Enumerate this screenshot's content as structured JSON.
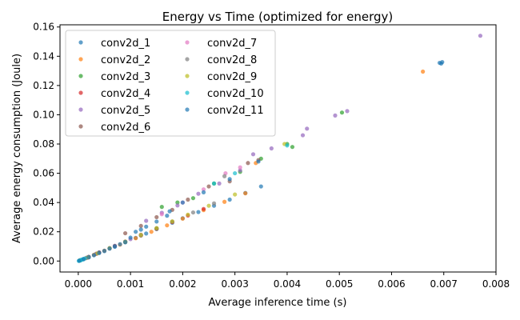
{
  "chart_data": {
    "type": "scatter",
    "title": "Energy vs Time (optimized for energy)",
    "xlabel": "Average inference time (s)",
    "ylabel": "Average energy consumption (Joule)",
    "xlim": [
      -0.00035,
      0.008
    ],
    "ylim": [
      -0.0075,
      0.1615
    ],
    "x_ticks": [
      "0.000",
      "0.001",
      "0.002",
      "0.003",
      "0.004",
      "0.005",
      "0.006",
      "0.007",
      "0.008"
    ],
    "x_tick_values": [
      0,
      0.001,
      0.002,
      0.003,
      0.004,
      0.005,
      0.006,
      0.007,
      0.008
    ],
    "y_ticks": [
      "0.00",
      "0.02",
      "0.04",
      "0.06",
      "0.08",
      "0.10",
      "0.12",
      "0.14",
      "0.16"
    ],
    "y_tick_values": [
      0,
      0.02,
      0.04,
      0.06,
      0.08,
      0.1,
      0.12,
      0.14,
      0.16
    ],
    "grid": false,
    "legend_position": "top-left",
    "legend_columns": 2,
    "series": [
      {
        "name": "conv2d_1",
        "color": "#1f77b4",
        "points": [
          [
            2e-05,
            0.0003
          ],
          [
            0.0001,
            0.0012
          ],
          [
            0.0002,
            0.0025
          ],
          [
            0.0003,
            0.004
          ],
          [
            0.0005,
            0.0068
          ],
          [
            0.0007,
            0.0098
          ],
          [
            0.0009,
            0.0128
          ],
          [
            0.0011,
            0.0158
          ],
          [
            0.0013,
            0.0188
          ],
          [
            0.0015,
            0.0218
          ],
          [
            0.0018,
            0.0262
          ],
          [
            0.002,
            0.0292
          ],
          [
            0.0023,
            0.0335
          ],
          [
            0.0026,
            0.0378
          ],
          [
            0.0029,
            0.042
          ],
          [
            0.0032,
            0.0465
          ],
          [
            0.0035,
            0.051
          ]
        ]
      },
      {
        "name": "conv2d_2",
        "color": "#ff7f0e",
        "points": [
          [
            3e-05,
            0.0004
          ],
          [
            0.00015,
            0.002
          ],
          [
            0.0003,
            0.0043
          ],
          [
            0.0005,
            0.0071
          ],
          [
            0.0008,
            0.0112
          ],
          [
            0.0011,
            0.0156
          ],
          [
            0.0014,
            0.02
          ],
          [
            0.0017,
            0.0244
          ],
          [
            0.002,
            0.029
          ],
          [
            0.0024,
            0.0348
          ],
          [
            0.0028,
            0.0405
          ],
          [
            0.0032,
            0.0463
          ],
          [
            0.0034,
            0.067
          ],
          [
            0.0066,
            0.1295
          ]
        ]
      },
      {
        "name": "conv2d_3",
        "color": "#2ca02c",
        "points": [
          [
            4e-05,
            0.0005
          ],
          [
            0.0002,
            0.0028
          ],
          [
            0.0004,
            0.0058
          ],
          [
            0.0006,
            0.0088
          ],
          [
            0.0009,
            0.013
          ],
          [
            0.0012,
            0.0175
          ],
          [
            0.0015,
            0.0222
          ],
          [
            0.0016,
            0.037
          ],
          [
            0.0019,
            0.04
          ],
          [
            0.0022,
            0.043
          ],
          [
            0.0026,
            0.053
          ],
          [
            0.0031,
            0.061
          ],
          [
            0.0035,
            0.07
          ],
          [
            0.004,
            0.08
          ],
          [
            0.0041,
            0.078
          ],
          [
            0.00505,
            0.1015
          ]
        ]
      },
      {
        "name": "conv2d_4",
        "color": "#d62728",
        "points": [
          [
            3e-05,
            0.0004
          ],
          [
            0.00018,
            0.0024
          ],
          [
            0.00035,
            0.005
          ],
          [
            0.0006,
            0.0086
          ],
          [
            0.0009,
            0.0131
          ],
          [
            0.0012,
            0.0176
          ],
          [
            0.0015,
            0.0221
          ],
          [
            0.0018,
            0.0266
          ],
          [
            0.0021,
            0.0311
          ],
          [
            0.0024,
            0.0356
          ]
        ]
      },
      {
        "name": "conv2d_5",
        "color": "#9467bd",
        "points": [
          [
            5e-05,
            0.0007
          ],
          [
            0.0002,
            0.0029
          ],
          [
            0.0004,
            0.0059
          ],
          [
            0.0007,
            0.0104
          ],
          [
            0.001,
            0.015
          ],
          [
            0.0013,
            0.0275
          ],
          [
            0.0016,
            0.033
          ],
          [
            0.0019,
            0.038
          ],
          [
            0.0023,
            0.046
          ],
          [
            0.0027,
            0.053
          ],
          [
            0.0031,
            0.062
          ],
          [
            0.00335,
            0.073
          ],
          [
            0.0037,
            0.077
          ],
          [
            0.0043,
            0.086
          ],
          [
            0.00438,
            0.0905
          ],
          [
            0.00492,
            0.0995
          ],
          [
            0.00515,
            0.1025
          ],
          [
            0.0077,
            0.154
          ]
        ]
      },
      {
        "name": "conv2d_6",
        "color": "#8c564b",
        "points": [
          [
            4e-05,
            0.0006
          ],
          [
            0.0002,
            0.0028
          ],
          [
            0.0004,
            0.0058
          ],
          [
            0.0007,
            0.0103
          ],
          [
            0.0009,
            0.019
          ],
          [
            0.0012,
            0.024
          ],
          [
            0.0015,
            0.03
          ],
          [
            0.0018,
            0.035
          ],
          [
            0.0021,
            0.042
          ],
          [
            0.0025,
            0.051
          ],
          [
            0.0029,
            0.0545
          ],
          [
            0.00325,
            0.067
          ],
          [
            0.00345,
            0.069
          ]
        ]
      },
      {
        "name": "conv2d_7",
        "color": "#e377c2",
        "points": [
          [
            3e-05,
            0.0005
          ],
          [
            0.00017,
            0.0024
          ],
          [
            0.00035,
            0.0051
          ],
          [
            0.0006,
            0.0088
          ],
          [
            0.0009,
            0.0134
          ],
          [
            0.0012,
            0.018
          ],
          [
            0.0016,
            0.032
          ],
          [
            0.002,
            0.04
          ],
          [
            0.0024,
            0.049
          ],
          [
            0.00282,
            0.06
          ],
          [
            0.0031,
            0.064
          ]
        ]
      },
      {
        "name": "conv2d_8",
        "color": "#7f7f7f",
        "points": [
          [
            3e-05,
            0.0004
          ],
          [
            0.00016,
            0.0022
          ],
          [
            0.00034,
            0.0049
          ],
          [
            0.0006,
            0.0087
          ],
          [
            0.0009,
            0.0132
          ],
          [
            0.0012,
            0.0178
          ],
          [
            0.0015,
            0.0224
          ],
          [
            0.0018,
            0.027
          ],
          [
            0.0022,
            0.0332
          ],
          [
            0.0026,
            0.0394
          ],
          [
            0.0028,
            0.058
          ]
        ]
      },
      {
        "name": "conv2d_9",
        "color": "#bcbd22",
        "points": [
          [
            3e-05,
            0.0005
          ],
          [
            0.00019,
            0.0026
          ],
          [
            0.00037,
            0.0053
          ],
          [
            0.0006,
            0.0088
          ],
          [
            0.0009,
            0.0133
          ],
          [
            0.0012,
            0.0179
          ],
          [
            0.0015,
            0.0225
          ],
          [
            0.0018,
            0.0271
          ],
          [
            0.0021,
            0.0317
          ],
          [
            0.0025,
            0.0378
          ],
          [
            0.003,
            0.0455
          ],
          [
            0.00395,
            0.08
          ]
        ]
      },
      {
        "name": "conv2d_10",
        "color": "#17becf",
        "points": [
          [
            1e-05,
            0.0001
          ],
          [
            2e-05,
            0.0002
          ],
          [
            3e-05,
            0.0004
          ],
          [
            4e-05,
            0.0005
          ],
          [
            5e-05,
            0.0007
          ],
          [
            6e-05,
            0.0008
          ],
          [
            8e-05,
            0.0011
          ],
          [
            0.0001,
            0.0014
          ],
          [
            0.00013,
            0.0018
          ],
          [
            0.0026,
            0.053
          ],
          [
            0.003,
            0.06
          ],
          [
            0.004,
            0.079
          ]
        ]
      },
      {
        "name": "conv2d_11",
        "color": "#1f77b4",
        "points": [
          [
            2e-05,
            0.0002
          ],
          [
            0.0001,
            0.0013
          ],
          [
            0.0002,
            0.0026
          ],
          [
            0.0003,
            0.004
          ],
          [
            0.0004,
            0.0055
          ],
          [
            0.0005,
            0.007
          ],
          [
            0.0006,
            0.0085
          ],
          [
            0.0007,
            0.01
          ],
          [
            0.0008,
            0.0115
          ],
          [
            0.0009,
            0.013
          ],
          [
            0.001,
            0.016
          ],
          [
            0.0011,
            0.02
          ],
          [
            0.0012,
            0.0215
          ],
          [
            0.0013,
            0.0235
          ],
          [
            0.0015,
            0.027
          ],
          [
            0.0017,
            0.031
          ],
          [
            0.002,
            0.04
          ],
          [
            0.00175,
            0.034
          ],
          [
            0.0024,
            0.047
          ],
          [
            0.0029,
            0.056
          ],
          [
            0.00345,
            0.068
          ],
          [
            0.00695,
            0.135
          ],
          [
            0.00692,
            0.1355
          ],
          [
            0.00697,
            0.136
          ]
        ]
      }
    ]
  }
}
